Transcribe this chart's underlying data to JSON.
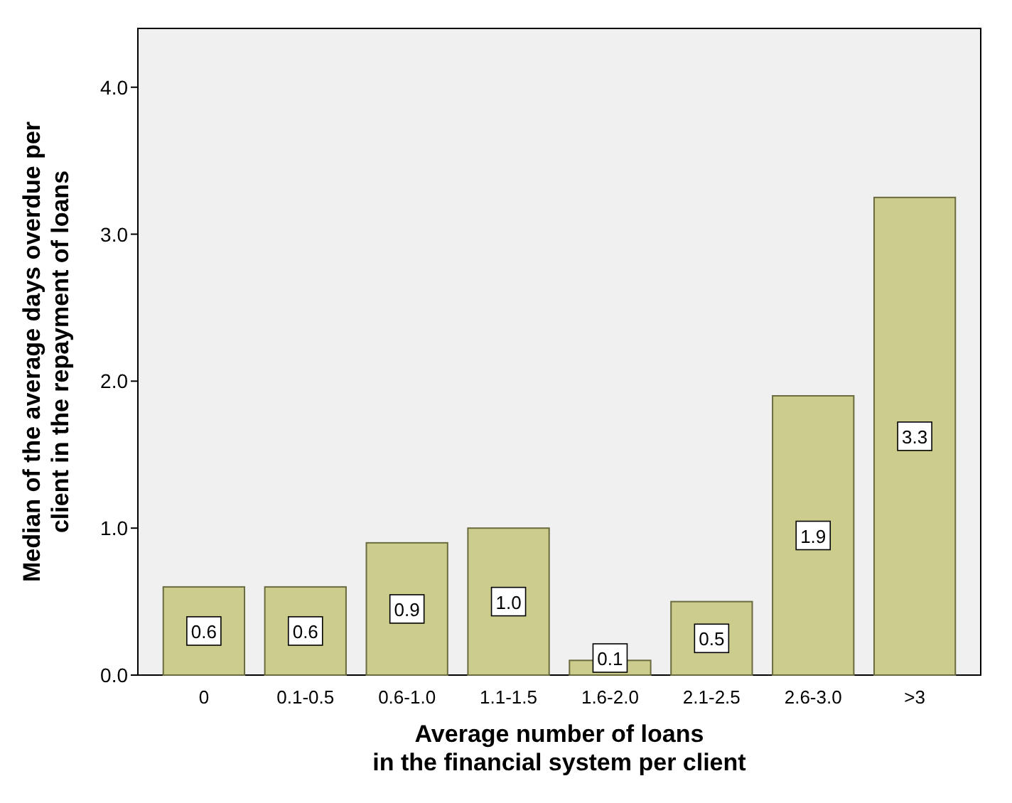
{
  "chart_data": {
    "type": "bar",
    "xlabel": "Average number of loans\nin the financial system per client",
    "ylabel": "Median of the average days overdue per\nclient in the repayment of loans",
    "categories": [
      "0",
      "0.1-0.5",
      "0.6-1.0",
      "1.1-1.5",
      "1.6-2.0",
      "2.1-2.5",
      "2.6-3.0",
      ">3"
    ],
    "values": [
      0.6,
      0.6,
      0.9,
      1.0,
      0.1,
      0.5,
      1.9,
      3.25
    ],
    "value_labels": [
      "0.6",
      "0.6",
      "0.9",
      "1.0",
      "0.1",
      "0.5",
      "1.9",
      "3.3"
    ],
    "color": "#cccc8c",
    "ylim": [
      0,
      4.4
    ],
    "yticks": [
      {
        "value": 0,
        "label": "0.0"
      },
      {
        "value": 1,
        "label": "1.0"
      },
      {
        "value": 2,
        "label": "2.0"
      },
      {
        "value": 3,
        "label": "3.0"
      },
      {
        "value": 4,
        "label": "4.0"
      }
    ],
    "grid": false
  }
}
